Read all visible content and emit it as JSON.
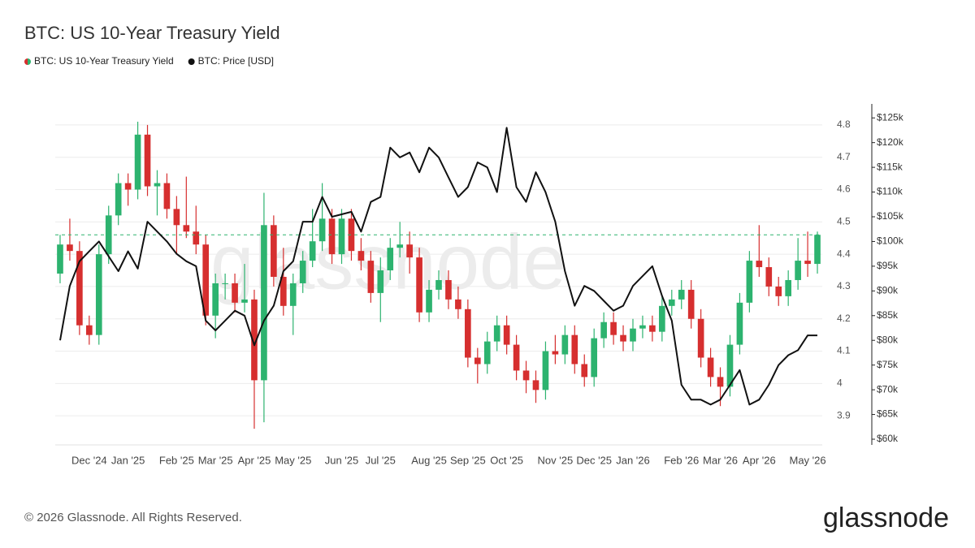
{
  "chart_data": {
    "type": "candlestick",
    "title": "BTC: US 10-Year Treasury Yield",
    "watermark": "glassnode",
    "footer": "© 2026 Glassnode. All Rights Reserved.",
    "logo": "glassnode",
    "categories": [
      null,
      null,
      null,
      "Dec '24",
      null,
      null,
      null,
      "Jan '25",
      null,
      null,
      null,
      null,
      "Feb '25",
      null,
      null,
      null,
      "Mar '25",
      null,
      null,
      null,
      "Apr '25",
      null,
      null,
      null,
      "May '25",
      null,
      null,
      null,
      null,
      "Jun '25",
      null,
      null,
      null,
      "Jul '25",
      null,
      null,
      null,
      null,
      "Aug '25",
      null,
      null,
      null,
      "Sep '25",
      null,
      null,
      null,
      "Oct '25",
      null,
      null,
      null,
      null,
      "Nov '25",
      null,
      null,
      null,
      "Dec '25",
      null,
      null,
      null,
      "Jan '26",
      null,
      null,
      null,
      null,
      "Feb '26",
      null,
      null,
      null,
      "Mar '26",
      null,
      null,
      null,
      "Apr '26",
      null,
      null,
      null,
      null,
      "May '26",
      null
    ],
    "series": [
      {
        "name": "BTC: US 10-Year Treasury Yield",
        "up_color": "#2db36f",
        "down_color": "#d62f2f",
        "open": [
          4.34,
          4.43,
          4.41,
          4.18,
          4.15,
          4.4,
          4.52,
          4.62,
          4.6,
          4.77,
          4.61,
          4.62,
          4.54,
          4.49,
          4.47,
          4.43,
          4.21,
          4.31,
          4.31,
          4.25,
          4.26,
          4.01,
          4.49,
          4.33,
          4.24,
          4.31,
          4.38,
          4.44,
          4.51,
          4.4,
          4.51,
          4.41,
          4.38,
          4.28,
          4.35,
          4.42,
          4.43,
          4.39,
          4.22,
          4.29,
          4.32,
          4.26,
          4.23,
          4.08,
          4.06,
          4.13,
          4.18,
          4.12,
          4.04,
          4.01,
          3.98,
          4.1,
          4.09,
          4.15,
          4.06,
          4.02,
          4.14,
          4.19,
          4.15,
          4.13,
          4.17,
          4.18,
          4.16,
          4.24,
          4.26,
          4.29,
          4.2,
          4.08,
          4.02,
          3.99,
          4.12,
          4.25,
          4.38,
          4.36,
          4.3,
          4.27,
          4.32,
          4.38,
          4.37
        ],
        "high": [
          4.46,
          4.51,
          4.44,
          4.21,
          4.43,
          4.55,
          4.65,
          4.65,
          4.81,
          4.8,
          4.66,
          4.65,
          4.58,
          4.64,
          4.55,
          4.46,
          4.34,
          4.34,
          4.34,
          4.37,
          4.29,
          4.59,
          4.52,
          4.42,
          4.34,
          4.41,
          4.54,
          4.62,
          4.54,
          4.54,
          4.54,
          4.45,
          4.41,
          4.39,
          4.45,
          4.5,
          4.47,
          4.42,
          4.32,
          4.35,
          4.35,
          4.3,
          4.26,
          4.11,
          4.16,
          4.21,
          4.21,
          4.15,
          4.07,
          4.04,
          4.13,
          4.15,
          4.18,
          4.18,
          4.09,
          4.17,
          4.22,
          4.22,
          4.18,
          4.2,
          4.21,
          4.21,
          4.27,
          4.29,
          4.32,
          4.32,
          4.23,
          4.11,
          4.05,
          4.15,
          4.28,
          4.41,
          4.49,
          4.39,
          4.33,
          4.35,
          4.45,
          4.47,
          4.47
        ],
        "low": [
          4.31,
          4.38,
          4.15,
          4.12,
          4.12,
          4.37,
          4.49,
          4.55,
          4.57,
          4.58,
          4.52,
          4.51,
          4.4,
          4.45,
          4.4,
          4.18,
          4.14,
          4.26,
          4.22,
          4.22,
          3.86,
          3.88,
          4.3,
          4.21,
          4.15,
          4.28,
          4.36,
          4.41,
          4.37,
          4.37,
          4.38,
          4.35,
          4.25,
          4.19,
          4.32,
          4.39,
          4.34,
          4.19,
          4.19,
          4.26,
          4.23,
          4.2,
          4.05,
          4.0,
          4.03,
          4.1,
          4.09,
          4.01,
          3.97,
          3.94,
          3.95,
          4.06,
          4.06,
          4.03,
          3.99,
          3.99,
          4.11,
          4.12,
          4.1,
          4.1,
          4.14,
          4.13,
          4.13,
          4.21,
          4.23,
          4.17,
          4.05,
          3.99,
          3.93,
          3.96,
          4.09,
          4.22,
          4.33,
          4.27,
          4.24,
          4.24,
          4.29,
          4.33,
          4.34
        ],
        "close": [
          4.43,
          4.41,
          4.18,
          4.15,
          4.4,
          4.52,
          4.62,
          4.6,
          4.77,
          4.61,
          4.62,
          4.54,
          4.49,
          4.47,
          4.43,
          4.21,
          4.31,
          4.31,
          4.25,
          4.26,
          4.01,
          4.49,
          4.33,
          4.24,
          4.31,
          4.38,
          4.44,
          4.51,
          4.4,
          4.51,
          4.41,
          4.38,
          4.28,
          4.35,
          4.42,
          4.43,
          4.39,
          4.22,
          4.29,
          4.32,
          4.26,
          4.23,
          4.08,
          4.06,
          4.13,
          4.18,
          4.12,
          4.04,
          4.01,
          3.98,
          4.1,
          4.09,
          4.15,
          4.06,
          4.02,
          4.14,
          4.19,
          4.15,
          4.13,
          4.17,
          4.18,
          4.16,
          4.24,
          4.26,
          4.29,
          4.2,
          4.08,
          4.02,
          3.99,
          4.12,
          4.25,
          4.38,
          4.36,
          4.3,
          4.27,
          4.32,
          4.38,
          4.37,
          4.46
        ]
      },
      {
        "name": "BTC: Price [USD]",
        "color": "#111111",
        "axis": "y2",
        "type": "line",
        "values": [
          80000,
          91000,
          96000,
          98000,
          100000,
          97000,
          94000,
          98000,
          94500,
          104000,
          102000,
          100000,
          97500,
          96000,
          95000,
          84000,
          82000,
          84000,
          86000,
          85000,
          79000,
          84000,
          87000,
          94000,
          96000,
          104000,
          104000,
          109000,
          105000,
          105500,
          106000,
          102000,
          108000,
          109000,
          119000,
          117000,
          118000,
          114000,
          119000,
          117000,
          113000,
          109000,
          111000,
          116000,
          115000,
          110000,
          123000,
          111000,
          108000,
          114000,
          110000,
          104000,
          94000,
          87000,
          91000,
          90000,
          88000,
          86000,
          87000,
          91000,
          93000,
          95000,
          89000,
          84000,
          71000,
          68000,
          68000,
          67000,
          68000,
          71000,
          74000,
          67000,
          68000,
          71000,
          75000,
          77000,
          78000,
          81000,
          81000
        ]
      }
    ],
    "ylim": [
      3.81,
      4.86
    ],
    "yticks": [
      3.9,
      4,
      4.1,
      4.2,
      4.3,
      4.4,
      4.5,
      4.6,
      4.7,
      4.8
    ],
    "y2lim": [
      58850,
      127500
    ],
    "y2ticks": [
      {
        "value": 60000,
        "label": "$60k"
      },
      {
        "value": 65000,
        "label": "$65k"
      },
      {
        "value": 70000,
        "label": "$70k"
      },
      {
        "value": 75000,
        "label": "$75k"
      },
      {
        "value": 80000,
        "label": "$80k"
      },
      {
        "value": 85000,
        "label": "$85k"
      },
      {
        "value": 90000,
        "label": "$90k"
      },
      {
        "value": 95000,
        "label": "$95k"
      },
      {
        "value": 100000,
        "label": "$100k"
      },
      {
        "value": 105000,
        "label": "$105k"
      },
      {
        "value": 110000,
        "label": "$110k"
      },
      {
        "value": 115000,
        "label": "$115k"
      },
      {
        "value": 120000,
        "label": "$120k"
      },
      {
        "value": 125000,
        "label": "$125k"
      }
    ],
    "grid": true
  }
}
